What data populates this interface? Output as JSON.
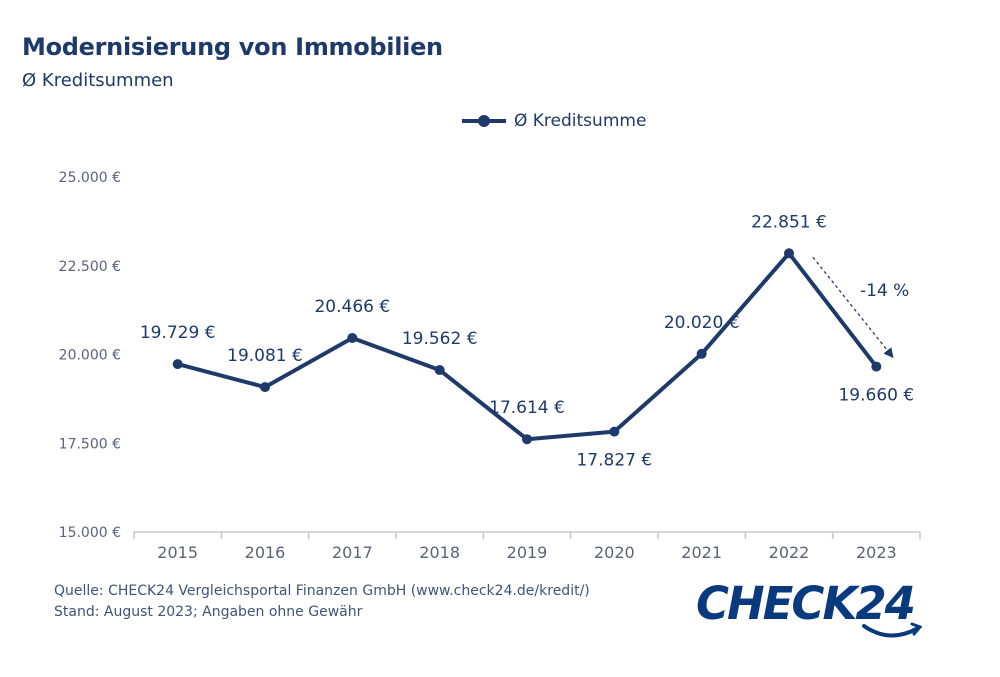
{
  "title": "Modernisierung von Immobilien",
  "subtitle": "Ø Kreditsummen",
  "colors": {
    "primary": "#1e3a6b",
    "axis": "#c8c8c8",
    "tick_text": "#5a6478",
    "logo": "#0a3a7e"
  },
  "chart_data": {
    "type": "line",
    "categories": [
      "2015",
      "2016",
      "2017",
      "2018",
      "2019",
      "2020",
      "2021",
      "2022",
      "2023"
    ],
    "series": [
      {
        "name": "Ø Kreditsumme",
        "values": [
          19729,
          19081,
          20466,
          19562,
          17614,
          17827,
          20020,
          22851,
          19660
        ],
        "labels": [
          "19.729 €",
          "19.081 €",
          "20.466 €",
          "19.562 €",
          "17.614 €",
          "17.827 €",
          "20.020 €",
          "22.851 €",
          "19.660 €"
        ]
      }
    ],
    "ylim": [
      15000,
      25000
    ],
    "yticks": [
      15000,
      17500,
      20000,
      22500,
      25000
    ],
    "ytick_labels": [
      "15.000 €",
      "17.500 €",
      "20.000 €",
      "22.500 €",
      "25.000 €"
    ],
    "grid": false,
    "legend": "top-center",
    "annotation": {
      "text": "-14 %",
      "from": "2022",
      "to": "2023"
    }
  },
  "footer": {
    "source": "Quelle: CHECK24 Vergleichsportal Finanzen GmbH (www.check24.de/kredit/)",
    "status": "Stand: August 2023; Angaben ohne Gewähr"
  },
  "logo": {
    "text": "CHECK24"
  }
}
